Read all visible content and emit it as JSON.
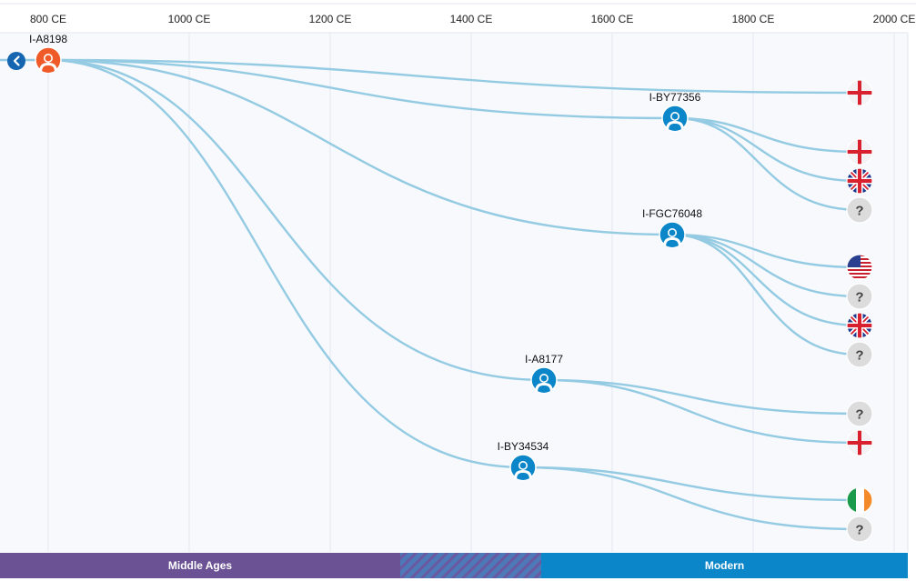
{
  "axis": {
    "ticks": [
      {
        "label": "800 CE",
        "year": 800
      },
      {
        "label": "1000 CE",
        "year": 1000
      },
      {
        "label": "1200 CE",
        "year": 1200
      },
      {
        "label": "1400 CE",
        "year": 1400
      },
      {
        "label": "1600 CE",
        "year": 1600
      },
      {
        "label": "1800 CE",
        "year": 1800
      },
      {
        "label": "2000 CE",
        "year": 2000
      }
    ]
  },
  "eras": [
    {
      "label": "Middle Ages",
      "color": "#6a5294"
    },
    {
      "label": "",
      "color": "#4f7fc0",
      "pattern": "striped"
    },
    {
      "label": "Modern",
      "color": "#0a86c9"
    }
  ],
  "colors": {
    "line": "#94cbe3",
    "ancestor_node": "#f05a28",
    "node": "#0a86c9",
    "back_button": "#1565b0",
    "background": "#f7f9fd"
  },
  "back_button": {
    "icon": "chevron-left-icon"
  },
  "nodes": [
    {
      "id": "root",
      "label": "I-A8198",
      "year": 800,
      "kind": "ancestor"
    },
    {
      "id": "by77356",
      "label": "I-BY77356",
      "year": 1690,
      "kind": "haplogroup"
    },
    {
      "id": "fgc76048",
      "label": "I-FGC76048",
      "year": 1686,
      "kind": "haplogroup"
    },
    {
      "id": "a8177",
      "label": "I-A8177",
      "year": 1502,
      "kind": "haplogroup"
    },
    {
      "id": "by34534",
      "label": "I-BY34534",
      "year": 1472,
      "kind": "haplogroup"
    }
  ],
  "leaves": [
    {
      "parent": "root",
      "flag": "england-flag-icon"
    },
    {
      "parent": "by77356",
      "flag": "england-flag-icon"
    },
    {
      "parent": "by77356",
      "flag": "uk-flag-icon"
    },
    {
      "parent": "by77356",
      "flag": "unknown-icon",
      "text": "?"
    },
    {
      "parent": "fgc76048",
      "flag": "usa-flag-icon"
    },
    {
      "parent": "fgc76048",
      "flag": "unknown-icon",
      "text": "?"
    },
    {
      "parent": "fgc76048",
      "flag": "uk-flag-icon"
    },
    {
      "parent": "fgc76048",
      "flag": "unknown-icon",
      "text": "?"
    },
    {
      "parent": "a8177",
      "flag": "unknown-icon",
      "text": "?"
    },
    {
      "parent": "a8177",
      "flag": "england-flag-icon"
    },
    {
      "parent": "by34534",
      "flag": "ireland-flag-icon"
    },
    {
      "parent": "by34534",
      "flag": "unknown-icon",
      "text": "?"
    }
  ]
}
